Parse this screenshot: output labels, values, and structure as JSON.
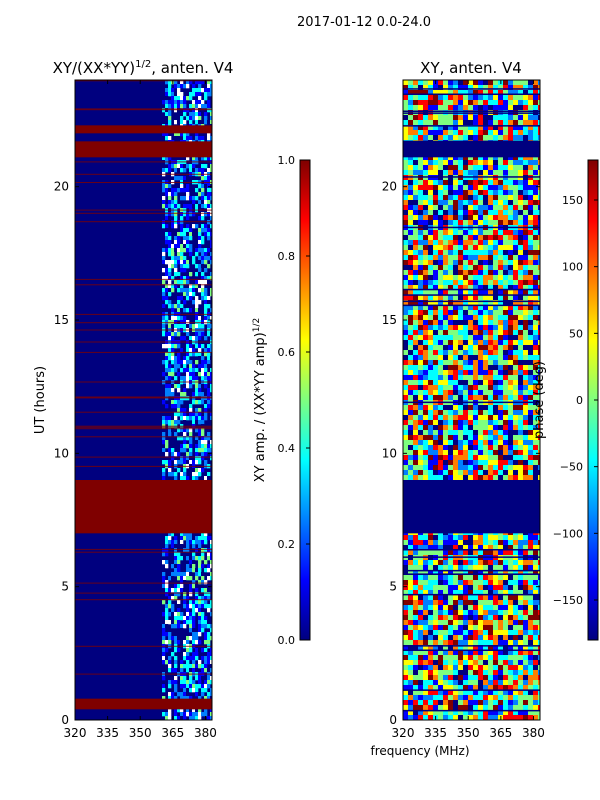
{
  "figure_title": "2017-01-12 0.0-24.0",
  "colors": {
    "jet": [
      "#00007f",
      "#0000ff",
      "#007fff",
      "#00ffff",
      "#7fff7f",
      "#ffff00",
      "#ff7f00",
      "#ff0000",
      "#7f0000"
    ],
    "flag_red": "#7f0000",
    "dark_blue": "#00007f"
  },
  "chart_data": [
    {
      "type": "heatmap",
      "title_prefix": "XY/(XX*YY)",
      "title_exponent": "1/2",
      "title_suffix": ", anten. V4",
      "xlabel": "",
      "ylabel": "UT (hours)",
      "xlim": [
        320,
        383
      ],
      "ylim": [
        0,
        24
      ],
      "xticks": [
        320,
        335,
        350,
        365,
        380
      ],
      "yticks": [
        0,
        5,
        10,
        15,
        20
      ],
      "active_band_mhz": [
        360,
        383
      ],
      "flagged_hours": [
        [
          0.4,
          0.8
        ],
        [
          7.0,
          9.0
        ],
        [
          21.1,
          21.7
        ],
        [
          22.0,
          22.3
        ]
      ],
      "colorbar": {
        "label_prefix": "XY amp. / (XX*YY amp)",
        "label_exponent": "1/2",
        "range": [
          0.0,
          1.0
        ],
        "ticks": [
          "0.0",
          "0.2",
          "0.4",
          "0.6",
          "0.8",
          "1.0"
        ],
        "tick_values": [
          0.0,
          0.2,
          0.4,
          0.6,
          0.8,
          1.0
        ]
      }
    },
    {
      "type": "heatmap",
      "title": "XY, anten. V4",
      "xlabel": "frequency (MHz)",
      "ylabel": "",
      "xlim": [
        320,
        383
      ],
      "ylim": [
        0,
        24
      ],
      "xticks": [
        320,
        335,
        350,
        365,
        380
      ],
      "yticks": [
        0,
        5,
        10,
        15,
        20
      ],
      "flagged_hours": [
        [
          7.0,
          9.0
        ],
        [
          21.1,
          21.7
        ]
      ],
      "colorbar": {
        "label": "phase (deg)",
        "range": [
          -180,
          180
        ],
        "ticks": [
          "150",
          "100",
          "50",
          "0",
          "−50",
          "−100",
          "−150"
        ],
        "tick_values": [
          150,
          100,
          50,
          0,
          -50,
          -100,
          -150
        ]
      }
    }
  ]
}
